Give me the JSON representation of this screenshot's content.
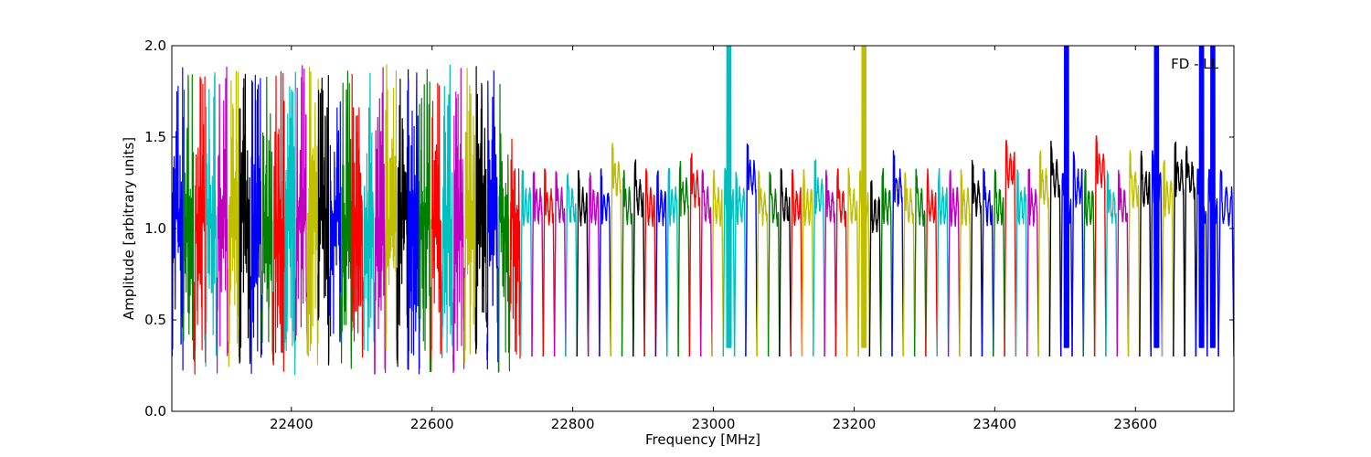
{
  "chart_data": {
    "type": "line",
    "title": "",
    "annotation": "FD - LL",
    "xlabel": "Frequency [MHz]",
    "ylabel": "Amplitude [arbitrary units]",
    "xlim": [
      22230,
      23740
    ],
    "ylim": [
      0.0,
      2.0
    ],
    "x_ticks": [
      22400,
      22600,
      22800,
      23000,
      23200,
      23400,
      23600
    ],
    "x_tick_labels": [
      "22400",
      "22600",
      "22800",
      "23000",
      "23200",
      "23400",
      "23600"
    ],
    "y_ticks": [
      0.0,
      0.5,
      1.0,
      1.5,
      2.0
    ],
    "y_tick_labels": [
      "0.0",
      "0.5",
      "1.0",
      "1.5",
      "2.0"
    ],
    "grid": false,
    "legend": "none",
    "color_cycle": [
      "#0000ff",
      "#008000",
      "#ff0000",
      "#00bfbf",
      "#bf00bf",
      "#bfbf00",
      "#000000"
    ],
    "segment_width_mhz": 16,
    "noise_band_end_mhz": 22735,
    "series": [
      {
        "x_start": 22230,
        "x_end": 22246,
        "color": "#0000ff",
        "style": "noisy",
        "level": 1.05
      },
      {
        "x_start": 22246,
        "x_end": 22262,
        "color": "#008000",
        "style": "noisy",
        "level": 1.05
      },
      {
        "x_start": 22262,
        "x_end": 22278,
        "color": "#ff0000",
        "style": "noisy",
        "level": 1.05
      },
      {
        "x_start": 22278,
        "x_end": 22294,
        "color": "#00bfbf",
        "style": "noisy",
        "level": 1.05
      },
      {
        "x_start": 22294,
        "x_end": 22310,
        "color": "#bf00bf",
        "style": "noisy",
        "level": 1.05
      },
      {
        "x_start": 22310,
        "x_end": 22326,
        "color": "#bfbf00",
        "style": "noisy",
        "level": 1.05
      },
      {
        "x_start": 22326,
        "x_end": 22342,
        "color": "#000000",
        "style": "noisy",
        "level": 1.05
      },
      {
        "x_start": 22342,
        "x_end": 22358,
        "color": "#0000ff",
        "style": "noisy",
        "level": 1.05
      },
      {
        "x_start": 22358,
        "x_end": 22374,
        "color": "#008000",
        "style": "noisy",
        "level": 1.05
      },
      {
        "x_start": 22374,
        "x_end": 22390,
        "color": "#ff0000",
        "style": "noisy",
        "level": 1.05
      },
      {
        "x_start": 22390,
        "x_end": 22406,
        "color": "#00bfbf",
        "style": "noisy",
        "level": 1.05
      },
      {
        "x_start": 22406,
        "x_end": 22422,
        "color": "#bf00bf",
        "style": "noisy",
        "level": 1.05
      },
      {
        "x_start": 22422,
        "x_end": 22438,
        "color": "#bfbf00",
        "style": "noisy",
        "level": 1.05
      },
      {
        "x_start": 22438,
        "x_end": 22454,
        "color": "#000000",
        "style": "noisy",
        "level": 1.05
      },
      {
        "x_start": 22454,
        "x_end": 22470,
        "color": "#0000ff",
        "style": "noisy",
        "level": 1.05
      },
      {
        "x_start": 22470,
        "x_end": 22486,
        "color": "#008000",
        "style": "noisy",
        "level": 1.05
      },
      {
        "x_start": 22486,
        "x_end": 22502,
        "color": "#ff0000",
        "style": "noisy",
        "level": 1.05
      },
      {
        "x_start": 22502,
        "x_end": 22518,
        "color": "#00bfbf",
        "style": "noisy",
        "level": 1.05
      },
      {
        "x_start": 22518,
        "x_end": 22534,
        "color": "#bf00bf",
        "style": "noisy",
        "level": 1.05
      },
      {
        "x_start": 22534,
        "x_end": 22550,
        "color": "#bfbf00",
        "style": "noisy",
        "level": 1.05
      },
      {
        "x_start": 22550,
        "x_end": 22566,
        "color": "#000000",
        "style": "noisy",
        "level": 1.05
      },
      {
        "x_start": 22566,
        "x_end": 22582,
        "color": "#0000ff",
        "style": "noisy",
        "level": 1.05
      },
      {
        "x_start": 22582,
        "x_end": 22598,
        "color": "#008000",
        "style": "noisy",
        "level": 1.05
      },
      {
        "x_start": 22598,
        "x_end": 22614,
        "color": "#ff0000",
        "style": "noisy",
        "level": 1.05
      },
      {
        "x_start": 22614,
        "x_end": 22630,
        "color": "#00bfbf",
        "style": "noisy",
        "level": 1.05
      },
      {
        "x_start": 22630,
        "x_end": 22646,
        "color": "#bf00bf",
        "style": "noisy",
        "level": 1.05
      },
      {
        "x_start": 22646,
        "x_end": 22662,
        "color": "#bfbf00",
        "style": "noisy",
        "level": 1.05
      },
      {
        "x_start": 22662,
        "x_end": 22678,
        "color": "#000000",
        "style": "noisy",
        "level": 1.05
      },
      {
        "x_start": 22678,
        "x_end": 22694,
        "color": "#0000ff",
        "style": "noisy",
        "level": 1.05
      },
      {
        "x_start": 22694,
        "x_end": 22710,
        "color": "#008000",
        "style": "noisy",
        "level": 1.05
      },
      {
        "x_start": 22710,
        "x_end": 22726,
        "color": "#ff0000",
        "style": "noisy",
        "level": 1.05
      },
      {
        "x_start": 22726,
        "x_end": 22742,
        "color": "#00bfbf",
        "style": "smooth",
        "level": 1.2
      },
      {
        "x_start": 22742,
        "x_end": 22758,
        "color": "#bf00bf",
        "style": "smooth",
        "level": 1.2
      },
      {
        "x_start": 22758,
        "x_end": 22774,
        "color": "#ff0000",
        "style": "smooth",
        "level": 1.2
      },
      {
        "x_start": 22774,
        "x_end": 22790,
        "color": "#bf00bf",
        "style": "smooth",
        "level": 1.2
      },
      {
        "x_start": 22790,
        "x_end": 22806,
        "color": "#00bfbf",
        "style": "smooth",
        "level": 1.2
      },
      {
        "x_start": 22806,
        "x_end": 22822,
        "color": "#000000",
        "style": "smooth",
        "level": 1.2
      },
      {
        "x_start": 22822,
        "x_end": 22838,
        "color": "#bf00bf",
        "style": "smooth",
        "level": 1.2
      },
      {
        "x_start": 22838,
        "x_end": 22854,
        "color": "#0000ff",
        "style": "smooth",
        "level": 1.2
      },
      {
        "x_start": 22854,
        "x_end": 22870,
        "color": "#bfbf00",
        "style": "smooth",
        "level": 1.35
      },
      {
        "x_start": 22870,
        "x_end": 22886,
        "color": "#008000",
        "style": "smooth",
        "level": 1.2
      },
      {
        "x_start": 22886,
        "x_end": 22902,
        "color": "#000000",
        "style": "smooth",
        "level": 1.25
      },
      {
        "x_start": 22902,
        "x_end": 22918,
        "color": "#ff0000",
        "style": "smooth",
        "level": 1.2
      },
      {
        "x_start": 22918,
        "x_end": 22934,
        "color": "#0000ff",
        "style": "smooth",
        "level": 1.2
      },
      {
        "x_start": 22934,
        "x_end": 22950,
        "color": "#00bfbf",
        "style": "smooth",
        "level": 1.2
      },
      {
        "x_start": 22950,
        "x_end": 22966,
        "color": "#008000",
        "style": "smooth",
        "level": 1.25
      },
      {
        "x_start": 22966,
        "x_end": 22982,
        "color": "#ff0000",
        "style": "smooth",
        "level": 1.3
      },
      {
        "x_start": 22982,
        "x_end": 22998,
        "color": "#bf00bf",
        "style": "smooth",
        "level": 1.2
      },
      {
        "x_start": 22998,
        "x_end": 23014,
        "color": "#bfbf00",
        "style": "smooth",
        "level": 1.2
      },
      {
        "x_start": 23014,
        "x_end": 23030,
        "color": "#00bfbf",
        "style": "spike",
        "level": 1.2
      },
      {
        "x_start": 23030,
        "x_end": 23046,
        "color": "#00bfbf",
        "style": "smooth",
        "level": 1.2
      },
      {
        "x_start": 23046,
        "x_end": 23062,
        "color": "#0000ff",
        "style": "smooth",
        "level": 1.35
      },
      {
        "x_start": 23062,
        "x_end": 23078,
        "color": "#bfbf00",
        "style": "smooth",
        "level": 1.2
      },
      {
        "x_start": 23078,
        "x_end": 23094,
        "color": "#008000",
        "style": "smooth",
        "level": 1.2
      },
      {
        "x_start": 23094,
        "x_end": 23110,
        "color": "#000000",
        "style": "smooth",
        "level": 1.2
      },
      {
        "x_start": 23110,
        "x_end": 23126,
        "color": "#ff0000",
        "style": "smooth",
        "level": 1.2
      },
      {
        "x_start": 23126,
        "x_end": 23142,
        "color": "#bfbf00",
        "style": "smooth",
        "level": 1.2
      },
      {
        "x_start": 23142,
        "x_end": 23158,
        "color": "#00bfbf",
        "style": "smooth",
        "level": 1.25
      },
      {
        "x_start": 23158,
        "x_end": 23174,
        "color": "#bf00bf",
        "style": "smooth",
        "level": 1.2
      },
      {
        "x_start": 23174,
        "x_end": 23190,
        "color": "#ff0000",
        "style": "smooth",
        "level": 1.2
      },
      {
        "x_start": 23190,
        "x_end": 23206,
        "color": "#bfbf00",
        "style": "smooth",
        "level": 1.2
      },
      {
        "x_start": 23206,
        "x_end": 23222,
        "color": "#bfbf00",
        "style": "spike",
        "level": 1.2
      },
      {
        "x_start": 23222,
        "x_end": 23238,
        "color": "#000000",
        "style": "smooth",
        "level": 1.15
      },
      {
        "x_start": 23238,
        "x_end": 23254,
        "color": "#008000",
        "style": "smooth",
        "level": 1.2
      },
      {
        "x_start": 23254,
        "x_end": 23270,
        "color": "#0000ff",
        "style": "smooth",
        "level": 1.3
      },
      {
        "x_start": 23270,
        "x_end": 23286,
        "color": "#bfbf00",
        "style": "smooth",
        "level": 1.2
      },
      {
        "x_start": 23286,
        "x_end": 23302,
        "color": "#008000",
        "style": "smooth",
        "level": 1.2
      },
      {
        "x_start": 23302,
        "x_end": 23318,
        "color": "#ff0000",
        "style": "smooth",
        "level": 1.2
      },
      {
        "x_start": 23318,
        "x_end": 23334,
        "color": "#00bfbf",
        "style": "smooth",
        "level": 1.2
      },
      {
        "x_start": 23334,
        "x_end": 23350,
        "color": "#bf00bf",
        "style": "smooth",
        "level": 1.2
      },
      {
        "x_start": 23350,
        "x_end": 23366,
        "color": "#bfbf00",
        "style": "smooth",
        "level": 1.2
      },
      {
        "x_start": 23366,
        "x_end": 23382,
        "color": "#000000",
        "style": "smooth",
        "level": 1.25
      },
      {
        "x_start": 23382,
        "x_end": 23398,
        "color": "#0000ff",
        "style": "smooth",
        "level": 1.2
      },
      {
        "x_start": 23398,
        "x_end": 23414,
        "color": "#008000",
        "style": "smooth",
        "level": 1.2
      },
      {
        "x_start": 23414,
        "x_end": 23430,
        "color": "#ff0000",
        "style": "smooth",
        "level": 1.4
      },
      {
        "x_start": 23430,
        "x_end": 23446,
        "color": "#00bfbf",
        "style": "smooth",
        "level": 1.2
      },
      {
        "x_start": 23446,
        "x_end": 23462,
        "color": "#bf00bf",
        "style": "smooth",
        "level": 1.2
      },
      {
        "x_start": 23462,
        "x_end": 23478,
        "color": "#bfbf00",
        "style": "smooth",
        "level": 1.3
      },
      {
        "x_start": 23478,
        "x_end": 23494,
        "color": "#000000",
        "style": "smooth",
        "level": 1.35
      },
      {
        "x_start": 23494,
        "x_end": 23510,
        "color": "#0000ff",
        "style": "spike",
        "level": 1.2
      },
      {
        "x_start": 23510,
        "x_end": 23526,
        "color": "#0000ff",
        "style": "smooth",
        "level": 1.3
      },
      {
        "x_start": 23526,
        "x_end": 23542,
        "color": "#008000",
        "style": "smooth",
        "level": 1.2
      },
      {
        "x_start": 23542,
        "x_end": 23558,
        "color": "#ff0000",
        "style": "smooth",
        "level": 1.4
      },
      {
        "x_start": 23558,
        "x_end": 23574,
        "color": "#00bfbf",
        "style": "smooth",
        "level": 1.2
      },
      {
        "x_start": 23574,
        "x_end": 23590,
        "color": "#bf00bf",
        "style": "smooth",
        "level": 1.2
      },
      {
        "x_start": 23590,
        "x_end": 23606,
        "color": "#bfbf00",
        "style": "smooth",
        "level": 1.3
      },
      {
        "x_start": 23606,
        "x_end": 23622,
        "color": "#000000",
        "style": "smooth",
        "level": 1.3
      },
      {
        "x_start": 23622,
        "x_end": 23638,
        "color": "#0000ff",
        "style": "spike",
        "level": 1.3
      },
      {
        "x_start": 23638,
        "x_end": 23654,
        "color": "#bfbf00",
        "style": "smooth",
        "level": 1.25
      },
      {
        "x_start": 23654,
        "x_end": 23670,
        "color": "#000000",
        "style": "smooth",
        "level": 1.35
      },
      {
        "x_start": 23670,
        "x_end": 23686,
        "color": "#000000",
        "style": "smooth",
        "level": 1.35
      },
      {
        "x_start": 23686,
        "x_end": 23702,
        "color": "#0000ff",
        "style": "spike",
        "level": 1.2
      },
      {
        "x_start": 23702,
        "x_end": 23718,
        "color": "#0000ff",
        "style": "spike",
        "level": 1.2
      },
      {
        "x_start": 23718,
        "x_end": 23740,
        "color": "#0000ff",
        "style": "smooth",
        "level": 1.2
      }
    ]
  }
}
